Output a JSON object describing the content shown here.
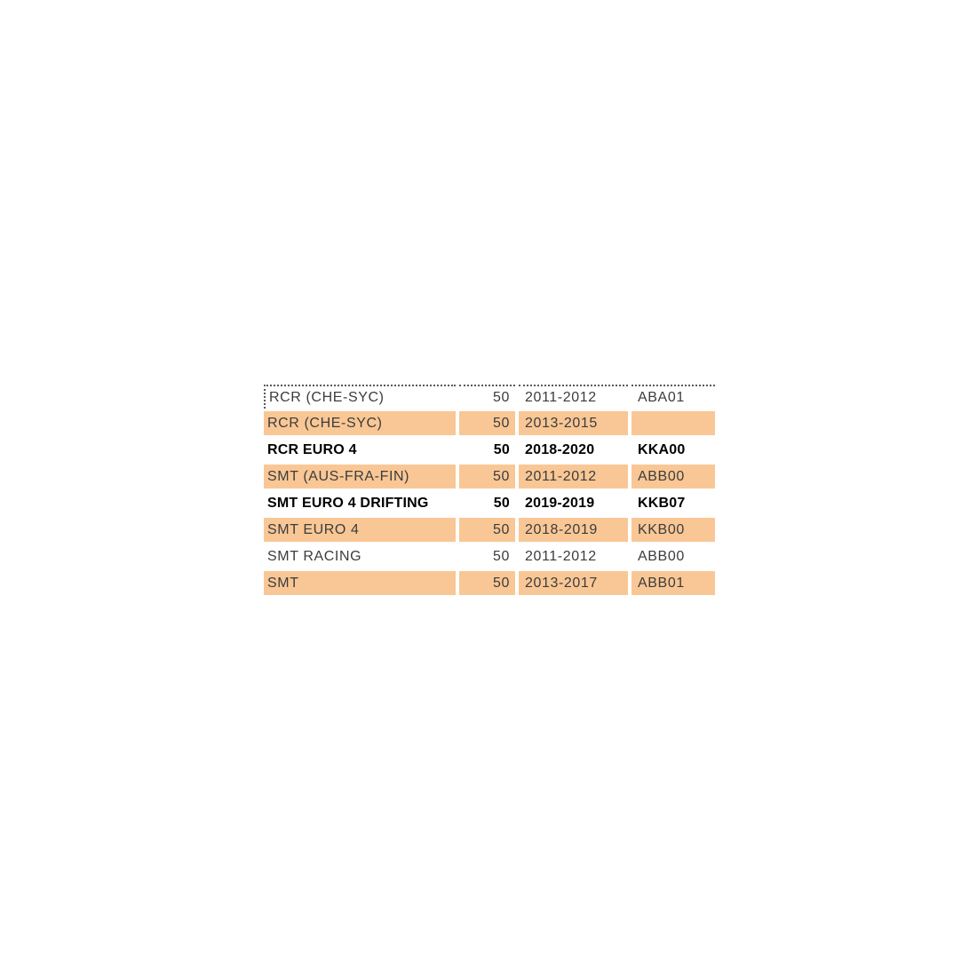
{
  "colors": {
    "row_fill": "#f9c795",
    "normal_text": "#3c3c3c",
    "bold_text": "#000000",
    "dotted_border": "#595959",
    "background": "#ffffff"
  },
  "table": {
    "rows": [
      {
        "name": "RCR (CHE-SYC)",
        "qty": "50",
        "years": "2011-2012",
        "code": "ABA01"
      },
      {
        "name": "RCR (CHE-SYC)",
        "qty": "50",
        "years": "2013-2015",
        "code": ""
      },
      {
        "name": "RCR EURO 4",
        "qty": "50",
        "years": "2018-2020",
        "code": "KKA00"
      },
      {
        "name": "SMT (AUS-FRA-FIN)",
        "qty": "50",
        "years": "2011-2012",
        "code": "ABB00"
      },
      {
        "name": "SMT EURO 4 DRIFTING",
        "qty": "50",
        "years": "2019-2019",
        "code": "KKB07"
      },
      {
        "name": "SMT EURO 4",
        "qty": "50",
        "years": "2018-2019",
        "code": "KKB00"
      },
      {
        "name": "SMT RACING",
        "qty": "50",
        "years": "2011-2012",
        "code": "ABB00"
      },
      {
        "name": "SMT",
        "qty": "50",
        "years": "2013-2017",
        "code": "ABB01"
      }
    ]
  }
}
